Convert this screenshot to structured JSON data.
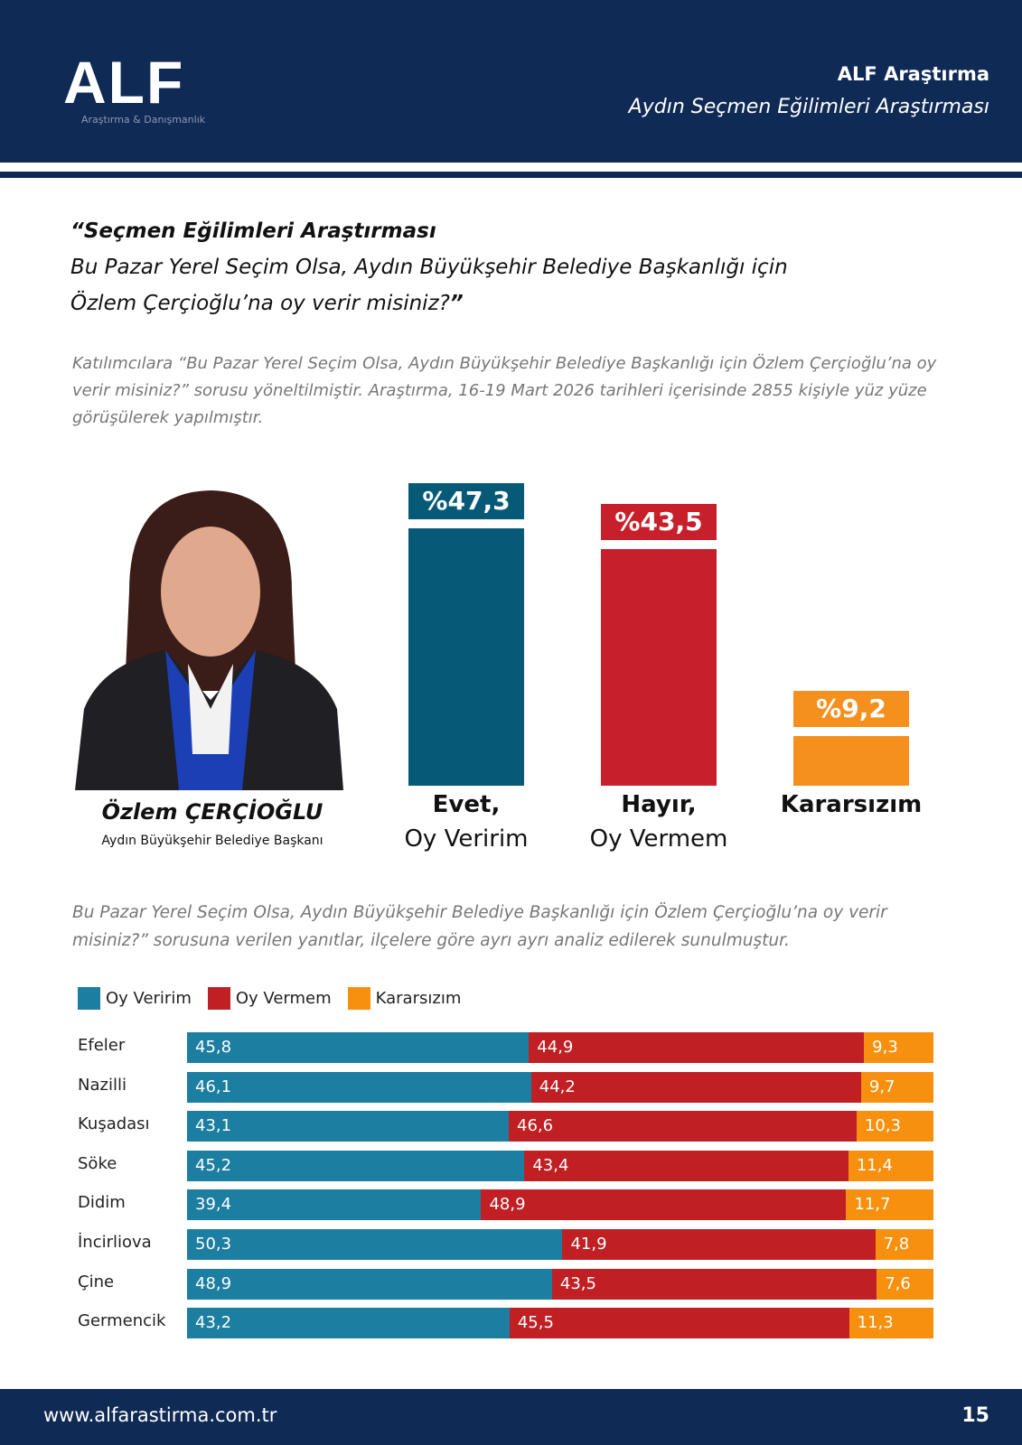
{
  "header": {
    "logo": "ALF",
    "logo_sub": "Araştırma & Danışmanlık",
    "title": "ALF Araştırma",
    "subtitle": "Aydın Seçmen Eğilimleri Araştırması"
  },
  "question": {
    "line1": "“Seçmen Eğilimleri Araştırması",
    "line2": " Bu Pazar Yerel Seçim Olsa, Aydın Büyükşehir Belediye Başkanlığı için",
    "line3": "Özlem Çerçioğlu’na oy verir misiniz?",
    "close": "”"
  },
  "description": "Katılımcılara “Bu Pazar Yerel Seçim Olsa, Aydın Büyükşehir Belediye Başkanlığı için Özlem Çerçioğlu’na oy verir misiniz?” sorusu yöneltilmiştir. Araştırma, 16-19 Mart 2026 tarihleri içerisinde 2855 kişiyle yüz yüze görüşülerek yapılmıştır.",
  "candidate": {
    "name": "Özlem ÇERÇİOĞLU",
    "role": "Aydın Büyükşehir Belediye Başkanı"
  },
  "description2": "Bu Pazar Yerel Seçim Olsa, Aydın Büyükşehir Belediye Başkanlığı için Özlem Çerçioğlu’na oy verir misiniz?” sorusuna verilen yanıtlar, ilçelere göre ayrı ayrı analiz edilerek sunulmuştur.",
  "footer": {
    "url": "www.alfarastirma.com.tr",
    "page": "15"
  },
  "colors": {
    "navy": "#0f2a55",
    "evet": "#065a78",
    "hayir": "#c8202a",
    "kararsiz": "#f5901e",
    "blue": "#1c7ea0",
    "red": "#c02024",
    "orange": "#f7900f"
  },
  "chart_data": [
    {
      "type": "bar",
      "categories": [
        {
          "bold": "Evet,",
          "rest": "Oy Veririm"
        },
        {
          "bold": "Hayır,",
          "rest": "Oy Vermem"
        },
        {
          "bold": "Kararsızım",
          "rest": ""
        }
      ],
      "values": [
        47.3,
        43.5,
        9.2
      ],
      "labels": [
        "%47,3",
        "%43,5",
        "%9,2"
      ]
    },
    {
      "type": "bar",
      "stacked": true,
      "orientation": "horizontal",
      "legend": [
        "Oy Veririm",
        "Oy Vermem",
        "Kararsızım"
      ],
      "legend_position": "top-left",
      "categories": [
        "Efeler",
        "Nazilli",
        "Kuşadası",
        "Söke",
        "Didim",
        "İncirliova",
        "Çine",
        "Germencik"
      ],
      "series": [
        {
          "name": "Oy Veririm",
          "values": [
            "45,8",
            "46,1",
            "43,1",
            "45,2",
            "39,4",
            "50,3",
            "48,9",
            "43,2"
          ]
        },
        {
          "name": "Oy Vermem",
          "values": [
            "44,9",
            "44,2",
            "46,6",
            "43,4",
            "48,9",
            "41,9",
            "43,5",
            "45,5"
          ]
        },
        {
          "name": "Kararsızım",
          "values": [
            "9,3",
            "9,7",
            "10,3",
            "11,4",
            "11,7",
            "7,8",
            "7,6",
            "11,3"
          ]
        }
      ]
    }
  ]
}
